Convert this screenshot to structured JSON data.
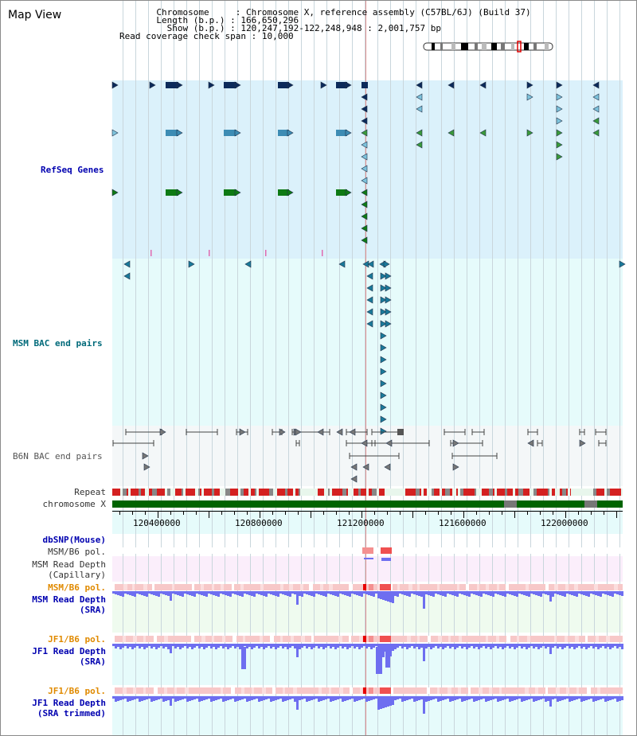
{
  "panel_title": "Map View",
  "info": {
    "chromosome_label": "Chromosome",
    "chromosome_value": "Chromosome X, reference assembly (C57BL/6J) (Build 37)",
    "length_label": "Length (b.p.)",
    "length_value": "166,650,296",
    "show_label": "Show (b.p.)",
    "show_value": "120,247,192-122,248,948 : 2,001,757 bp",
    "coverage_label": "Read coverage check span",
    "coverage_value": "10,000"
  },
  "tracks": {
    "refseq": "RefSeq Genes",
    "msm_bac": "MSM BAC end pairs",
    "b6n_bac": "B6N BAC end pairs",
    "repeat": "Repeat",
    "chromosome": "chromosome X",
    "dbsnp": "dbSNP(Mouse)",
    "msm_b6_pol_1": "MSM/B6 pol.",
    "msm_read_depth_cap_1": "MSM Read Depth",
    "msm_read_depth_cap_2": "(Capillary)",
    "msm_b6_pol_2": "MSM/B6 pol.",
    "msm_read_depth_sra_1": "MSM Read Depth",
    "msm_read_depth_sra_2": "(SRA)",
    "jf1_b6_pol_1": "JF1/B6 pol.",
    "jf1_read_depth_sra_1": "JF1 Read Depth",
    "jf1_read_depth_sra_2": "(SRA)",
    "jf1_b6_pol_2": "JF1/B6 pol.",
    "jf1_read_depth_trim_1": "JF1 Read Depth",
    "jf1_read_depth_trim_2": "(SRA trimmed)"
  },
  "axis": {
    "ticks": [
      "120400000",
      "120800000",
      "121200000",
      "121600000",
      "122000000"
    ]
  },
  "colors": {
    "refseq_bg": "#dbf1fb",
    "msm_bg": "#e6fbfb",
    "b6n_bg": "#f4f7f8",
    "read_cap_bg": "#fbeefb",
    "read_sra_bg": "#effbef",
    "jf1_bg": "#e6fbfb",
    "label_blue": "#0000b0",
    "label_teal": "#006a7a",
    "label_orange": "#e08a00",
    "label_gray": "#333333",
    "chrom_green": "#006400",
    "depth_blue": "#6e6ef0",
    "pol_pink": "#f7c8c8",
    "pol_red": "#e80000"
  }
}
